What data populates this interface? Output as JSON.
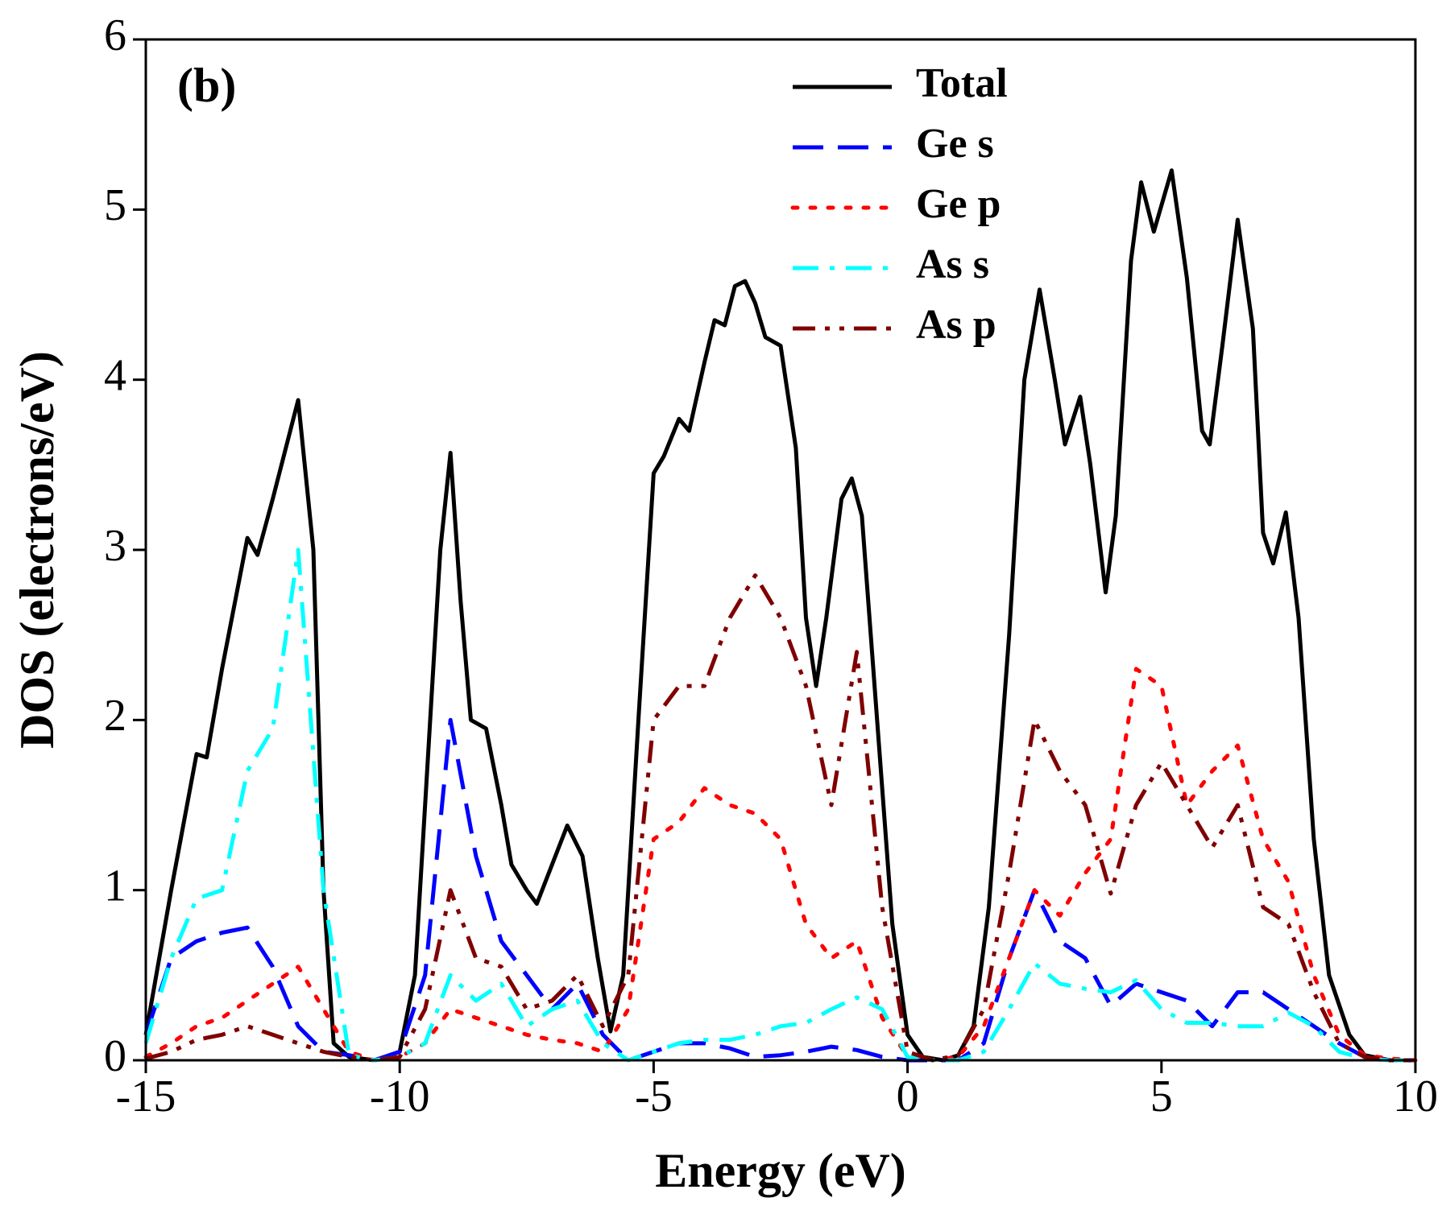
{
  "chart_data": {
    "type": "line",
    "annotation": "(b)",
    "xlabel": "Energy (eV)",
    "ylabel": "DOS (electrons/eV)",
    "xlim": [
      -15,
      10
    ],
    "xticks": [
      -15,
      -10,
      -5,
      0,
      5,
      10
    ],
    "ylim": [
      0,
      6
    ],
    "yticks": [
      0,
      1,
      2,
      3,
      4,
      5,
      6
    ],
    "legend": "upper right",
    "x": [
      -15,
      -14.5,
      -14,
      -13.5,
      -13,
      -12.5,
      -12,
      -11.5,
      -11,
      -10.5,
      -10,
      -9.5,
      -9,
      -8.5,
      -8,
      -7.5,
      -7,
      -6.5,
      -6,
      -5.5,
      -5,
      -4.5,
      -4,
      -3.5,
      -3,
      -2.5,
      -2,
      -1.5,
      -1,
      -0.5,
      0,
      0.5,
      1,
      1.5,
      2,
      2.5,
      3,
      3.5,
      4,
      4.5,
      5,
      5.5,
      6,
      6.5,
      7,
      7.5,
      8,
      8.5,
      9,
      9.5,
      10
    ],
    "series": [
      {
        "name": "Total",
        "color": "#000000",
        "dash": "solid",
        "x": [
          -15,
          -14.5,
          -14,
          -13.8,
          -13.5,
          -13,
          -12.8,
          -12.5,
          -12,
          -11.7,
          -11.5,
          -11.3,
          -11,
          -10.5,
          -10,
          -9.7,
          -9.5,
          -9.2,
          -9,
          -8.8,
          -8.6,
          -8.3,
          -8,
          -7.8,
          -7.5,
          -7.3,
          -7,
          -6.7,
          -6.4,
          -6.1,
          -5.85,
          -5.6,
          -5.3,
          -5,
          -4.8,
          -4.5,
          -4.3,
          -4,
          -3.8,
          -3.6,
          -3.4,
          -3.2,
          -3,
          -2.8,
          -2.5,
          -2.2,
          -2,
          -1.8,
          -1.6,
          -1.3,
          -1.1,
          -0.9,
          -0.6,
          -0.3,
          0,
          0.3,
          0.7,
          1,
          1.3,
          1.6,
          2,
          2.3,
          2.6,
          2.9,
          3.1,
          3.4,
          3.6,
          3.9,
          4.1,
          4.4,
          4.6,
          4.85,
          5.2,
          5.5,
          5.8,
          5.95,
          6.2,
          6.5,
          6.8,
          7,
          7.2,
          7.45,
          7.7,
          8,
          8.3,
          8.7,
          9,
          9.5,
          10
        ],
        "values": [
          0.15,
          1.0,
          1.8,
          1.78,
          2.3,
          3.07,
          2.97,
          3.3,
          3.88,
          3.0,
          1.0,
          0.1,
          0.02,
          0,
          0.05,
          0.5,
          1.5,
          3.0,
          3.57,
          2.7,
          2.0,
          1.95,
          1.5,
          1.15,
          1.0,
          0.92,
          1.15,
          1.38,
          1.2,
          0.6,
          0.17,
          0.5,
          2.0,
          3.45,
          3.55,
          3.77,
          3.7,
          4.1,
          4.35,
          4.32,
          4.55,
          4.58,
          4.45,
          4.25,
          4.2,
          3.6,
          2.6,
          2.2,
          2.6,
          3.3,
          3.42,
          3.2,
          2.0,
          0.8,
          0.15,
          0.02,
          0,
          0.03,
          0.2,
          0.9,
          2.5,
          4.0,
          4.53,
          4.0,
          3.62,
          3.9,
          3.5,
          2.75,
          3.2,
          4.7,
          5.16,
          4.87,
          5.23,
          4.6,
          3.7,
          3.62,
          4.2,
          4.94,
          4.3,
          3.1,
          2.92,
          3.22,
          2.6,
          1.3,
          0.5,
          0.15,
          0.03,
          0,
          0
        ]
      },
      {
        "name": "Ge s",
        "color": "#0000ff",
        "dash": "dashed",
        "values": [
          0.15,
          0.6,
          0.7,
          0.75,
          0.78,
          0.55,
          0.2,
          0.05,
          0.03,
          0,
          0.05,
          0.5,
          2.0,
          1.2,
          0.7,
          0.5,
          0.3,
          0.45,
          0.15,
          0,
          0.05,
          0.1,
          0.1,
          0.07,
          0.02,
          0.03,
          0.05,
          0.08,
          0.06,
          0.02,
          0,
          0,
          0,
          0.1,
          0.6,
          1.0,
          0.7,
          0.6,
          0.32,
          0.45,
          0.4,
          0.35,
          0.2,
          0.4,
          0.4,
          0.3,
          0.2,
          0.1,
          0.02,
          0,
          0
        ]
      },
      {
        "name": "Ge p",
        "color": "#ff0000",
        "dash": "dotted",
        "values": [
          0.02,
          0.1,
          0.2,
          0.25,
          0.35,
          0.45,
          0.55,
          0.3,
          0.05,
          0,
          0.02,
          0.1,
          0.3,
          0.25,
          0.2,
          0.15,
          0.12,
          0.1,
          0.05,
          0.3,
          1.3,
          1.4,
          1.6,
          1.5,
          1.45,
          1.3,
          0.8,
          0.6,
          0.7,
          0.25,
          0.02,
          0,
          0.02,
          0.2,
          0.6,
          1.0,
          0.85,
          1.1,
          1.3,
          2.3,
          2.2,
          1.5,
          1.7,
          1.85,
          1.3,
          1.05,
          0.5,
          0.15,
          0.03,
          0.01,
          0
        ]
      },
      {
        "name": "As s",
        "color": "#00ffff",
        "dash": "dashdot",
        "values": [
          0.1,
          0.6,
          0.95,
          1.0,
          1.7,
          1.95,
          3.0,
          1.0,
          0.03,
          0,
          0.02,
          0.1,
          0.5,
          0.35,
          0.45,
          0.2,
          0.3,
          0.35,
          0.1,
          0,
          0.05,
          0.1,
          0.12,
          0.12,
          0.15,
          0.2,
          0.22,
          0.3,
          0.37,
          0.3,
          0.02,
          0,
          0,
          0.05,
          0.3,
          0.57,
          0.45,
          0.42,
          0.4,
          0.47,
          0.3,
          0.22,
          0.22,
          0.2,
          0.2,
          0.28,
          0.2,
          0.05,
          0.01,
          0,
          0
        ]
      },
      {
        "name": "As p",
        "color": "#800000",
        "dash": "dashdotdot",
        "values": [
          0.01,
          0.05,
          0.12,
          0.15,
          0.2,
          0.15,
          0.1,
          0.05,
          0.02,
          0,
          0.02,
          0.3,
          1.0,
          0.6,
          0.55,
          0.3,
          0.35,
          0.5,
          0.2,
          0.5,
          2.0,
          2.2,
          2.2,
          2.6,
          2.85,
          2.6,
          2.2,
          1.5,
          2.4,
          0.9,
          0.05,
          0,
          0.03,
          0.3,
          1.1,
          2.0,
          1.7,
          1.5,
          0.98,
          1.5,
          1.75,
          1.5,
          1.25,
          1.5,
          0.9,
          0.8,
          0.4,
          0.1,
          0.02,
          0,
          0
        ]
      }
    ]
  }
}
